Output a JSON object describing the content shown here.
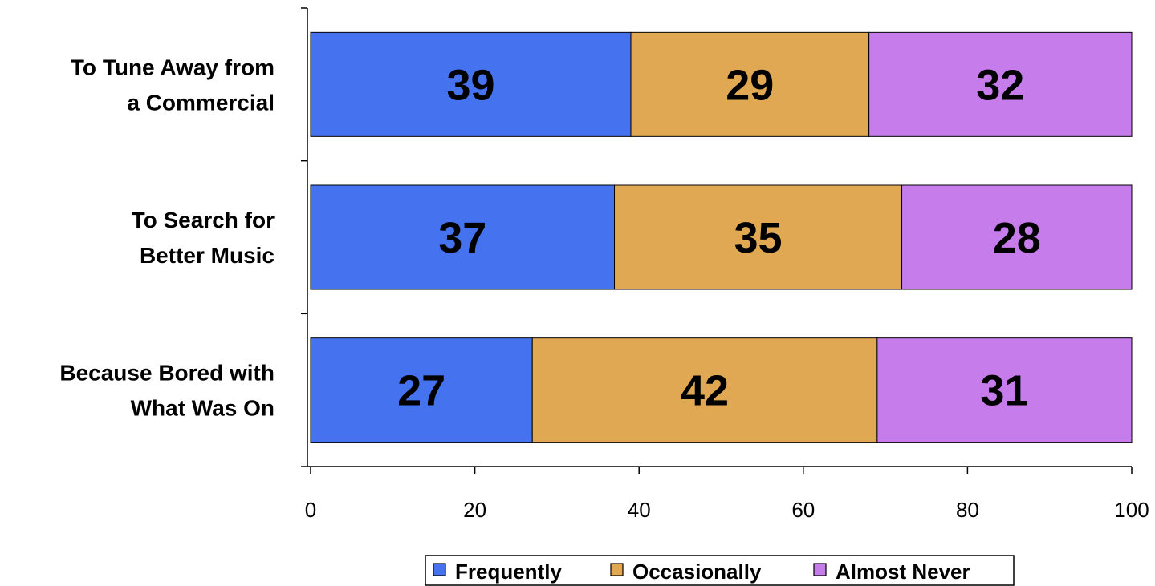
{
  "chart_data": {
    "type": "bar",
    "orientation": "horizontal",
    "stacked": true,
    "categories": [
      [
        "To Tune Away from",
        "a Commercial"
      ],
      [
        "To Search for",
        "Better Music"
      ],
      [
        "Because Bored with",
        "What Was On"
      ]
    ],
    "series": [
      {
        "name": "Frequently",
        "values": [
          39,
          37,
          27
        ],
        "color": "#4573ef"
      },
      {
        "name": "Occasionally",
        "values": [
          29,
          35,
          42
        ],
        "color": "#e0a853"
      },
      {
        "name": "Almost Never",
        "values": [
          32,
          28,
          31
        ],
        "color": "#c67ceb"
      }
    ],
    "xlim": [
      0,
      100
    ],
    "xticks": [
      0,
      20,
      40,
      60,
      80,
      100
    ],
    "legend_position": "bottom",
    "grid": false
  }
}
